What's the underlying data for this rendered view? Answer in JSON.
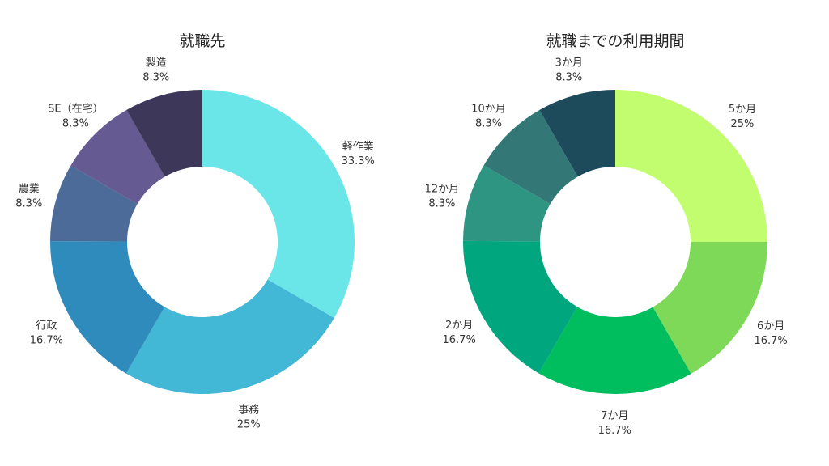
{
  "chart_data": [
    {
      "type": "pie",
      "donut": true,
      "title": "就職先",
      "categories": [
        "軽作業",
        "事務",
        "行政",
        "農業",
        "SE（在宅）",
        "製造"
      ],
      "values": [
        33.3,
        25,
        16.7,
        8.3,
        8.3,
        8.3
      ],
      "value_labels": [
        "33.3%",
        "25%",
        "16.7%",
        "8.3%",
        "8.3%",
        "8.3%"
      ],
      "colors": [
        "#6ae5e8",
        "#43b7d6",
        "#2e8bbb",
        "#4c6b98",
        "#655a92",
        "#3d3759"
      ],
      "direction": "clockwise",
      "start": "top"
    },
    {
      "type": "pie",
      "donut": true,
      "title": "就職までの利用期間",
      "categories": [
        "5か月",
        "6か月",
        "7か月",
        "2か月",
        "12か月",
        "10か月",
        "3か月"
      ],
      "values": [
        25,
        16.7,
        16.7,
        16.7,
        8.3,
        8.3,
        8.3
      ],
      "value_labels": [
        "25%",
        "16.7%",
        "16.7%",
        "16.7%",
        "8.3%",
        "8.3%",
        "8.3%"
      ],
      "colors": [
        "#c2fd70",
        "#7fd959",
        "#00be5e",
        "#00a67e",
        "#2f9583",
        "#337877",
        "#1d4b5c"
      ],
      "direction": "clockwise",
      "start": "top"
    }
  ]
}
